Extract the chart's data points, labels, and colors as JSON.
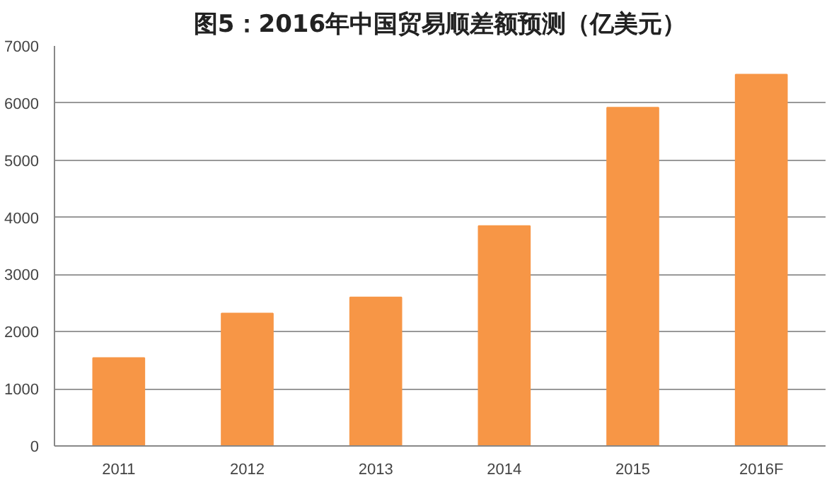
{
  "chart_data": {
    "type": "bar",
    "title": "图5：2016年中国贸易顺差额预测（亿美元）",
    "categories": [
      "2011",
      "2012",
      "2013",
      "2014",
      "2015",
      "2016F"
    ],
    "values": [
      1540,
      2320,
      2600,
      3850,
      5920,
      6500
    ],
    "color": "#f79646",
    "ylim": [
      0,
      7000
    ],
    "yticks": [
      0,
      1000,
      2000,
      3000,
      4000,
      5000,
      6000,
      7000
    ],
    "grid": "y"
  }
}
